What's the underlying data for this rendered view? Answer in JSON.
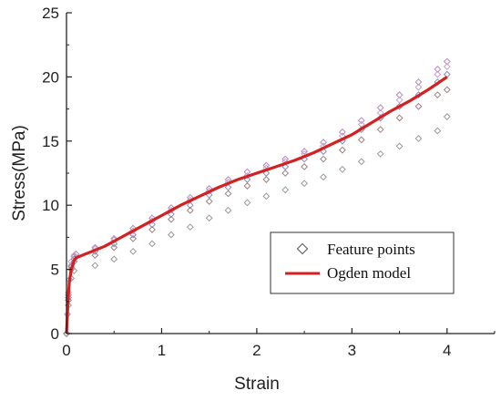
{
  "chart_data": {
    "type": "scatter",
    "xlabel": "Strain",
    "ylabel": "Stress(MPa)",
    "xlim": [
      0,
      4.5
    ],
    "ylim": [
      0,
      25
    ],
    "xticks": [
      "0",
      "1",
      "2",
      "3",
      "4"
    ],
    "yticks": [
      "0",
      "5",
      "10",
      "15",
      "20",
      "25"
    ],
    "grid": false,
    "legend_position": "center-right",
    "series": [
      {
        "name": "Feature points",
        "kind": "scatter",
        "marker": "diamond",
        "sub_series": [
          {
            "color": "#b58ab8",
            "points": [
              [
                0,
                0
              ],
              [
                0.01,
                1.5
              ],
              [
                0.02,
                3.0
              ],
              [
                0.03,
                4.2
              ],
              [
                0.05,
                5.3
              ],
              [
                0.08,
                6.0
              ],
              [
                0.1,
                6.2
              ],
              [
                0.3,
                6.7
              ],
              [
                0.5,
                7.4
              ],
              [
                0.7,
                8.2
              ],
              [
                0.9,
                9.0
              ],
              [
                1.1,
                9.8
              ],
              [
                1.3,
                10.6
              ],
              [
                1.5,
                11.3
              ],
              [
                1.7,
                12.0
              ],
              [
                1.9,
                12.6
              ],
              [
                2.1,
                13.1
              ],
              [
                2.3,
                13.6
              ],
              [
                2.5,
                14.2
              ],
              [
                2.7,
                14.9
              ],
              [
                2.9,
                15.7
              ],
              [
                3.1,
                16.6
              ],
              [
                3.3,
                17.6
              ],
              [
                3.5,
                18.6
              ],
              [
                3.7,
                19.6
              ],
              [
                3.9,
                20.6
              ],
              [
                4.0,
                21.2
              ]
            ]
          },
          {
            "color": "#c9a0c9",
            "points": [
              [
                0,
                0
              ],
              [
                0.02,
                3.2
              ],
              [
                0.05,
                5.6
              ],
              [
                0.08,
                6.1
              ],
              [
                0.3,
                6.6
              ],
              [
                0.5,
                7.3
              ],
              [
                0.7,
                8.0
              ],
              [
                0.9,
                8.8
              ],
              [
                1.1,
                9.6
              ],
              [
                1.3,
                10.4
              ],
              [
                1.5,
                11.1
              ],
              [
                1.7,
                11.8
              ],
              [
                1.9,
                12.3
              ],
              [
                2.1,
                12.9
              ],
              [
                2.3,
                13.4
              ],
              [
                2.5,
                14.0
              ],
              [
                2.7,
                14.6
              ],
              [
                2.9,
                15.4
              ],
              [
                3.1,
                16.3
              ],
              [
                3.3,
                17.2
              ],
              [
                3.5,
                18.2
              ],
              [
                3.7,
                19.2
              ],
              [
                3.9,
                20.2
              ],
              [
                4.0,
                20.8
              ]
            ]
          },
          {
            "color": "#8c8cc0",
            "points": [
              [
                0,
                0
              ],
              [
                0.02,
                2.8
              ],
              [
                0.05,
                5.2
              ],
              [
                0.08,
                5.8
              ],
              [
                0.3,
                6.4
              ],
              [
                0.5,
                7.0
              ],
              [
                0.7,
                7.7
              ],
              [
                0.9,
                8.5
              ],
              [
                1.1,
                9.3
              ],
              [
                1.3,
                10.0
              ],
              [
                1.5,
                10.8
              ],
              [
                1.7,
                11.4
              ],
              [
                1.9,
                12.0
              ],
              [
                2.1,
                12.5
              ],
              [
                2.3,
                13.0
              ],
              [
                2.5,
                13.6
              ],
              [
                2.7,
                14.2
              ],
              [
                2.9,
                15.0
              ],
              [
                3.1,
                15.9
              ],
              [
                3.3,
                16.8
              ],
              [
                3.5,
                17.7
              ],
              [
                3.7,
                18.6
              ],
              [
                3.9,
                19.6
              ],
              [
                4.0,
                20.2
              ]
            ]
          },
          {
            "color": "#a08080",
            "points": [
              [
                0,
                0
              ],
              [
                0.02,
                2.6
              ],
              [
                0.05,
                5.0
              ],
              [
                0.08,
                5.6
              ],
              [
                0.3,
                6.1
              ],
              [
                0.5,
                6.7
              ],
              [
                0.7,
                7.4
              ],
              [
                0.9,
                8.1
              ],
              [
                1.1,
                8.9
              ],
              [
                1.3,
                9.6
              ],
              [
                1.5,
                10.3
              ],
              [
                1.7,
                10.9
              ],
              [
                1.9,
                11.5
              ],
              [
                2.1,
                12.0
              ],
              [
                2.3,
                12.5
              ],
              [
                2.5,
                13.0
              ],
              [
                2.7,
                13.6
              ],
              [
                2.9,
                14.3
              ],
              [
                3.1,
                15.1
              ],
              [
                3.3,
                15.9
              ],
              [
                3.5,
                16.8
              ],
              [
                3.7,
                17.7
              ],
              [
                3.9,
                18.6
              ],
              [
                4.0,
                19.0
              ]
            ]
          },
          {
            "color": "#9a9a9a",
            "points": [
              [
                0,
                0
              ],
              [
                0.02,
                2.2
              ],
              [
                0.05,
                4.3
              ],
              [
                0.08,
                4.9
              ],
              [
                0.3,
                5.3
              ],
              [
                0.5,
                5.8
              ],
              [
                0.7,
                6.4
              ],
              [
                0.9,
                7.0
              ],
              [
                1.1,
                7.7
              ],
              [
                1.3,
                8.3
              ],
              [
                1.5,
                9.0
              ],
              [
                1.7,
                9.6
              ],
              [
                1.9,
                10.2
              ],
              [
                2.1,
                10.7
              ],
              [
                2.3,
                11.2
              ],
              [
                2.5,
                11.7
              ],
              [
                2.7,
                12.2
              ],
              [
                2.9,
                12.8
              ],
              [
                3.1,
                13.4
              ],
              [
                3.3,
                14.0
              ],
              [
                3.5,
                14.6
              ],
              [
                3.7,
                15.2
              ],
              [
                3.9,
                15.8
              ],
              [
                4.0,
                16.9
              ]
            ]
          }
        ]
      },
      {
        "name": "Ogden model",
        "kind": "line",
        "color": "#d42020",
        "points": [
          [
            0,
            0
          ],
          [
            0.01,
            1.5
          ],
          [
            0.02,
            3.0
          ],
          [
            0.03,
            4.0
          ],
          [
            0.05,
            5.0
          ],
          [
            0.08,
            5.7
          ],
          [
            0.1,
            5.9
          ],
          [
            0.2,
            6.2
          ],
          [
            0.4,
            6.8
          ],
          [
            0.6,
            7.6
          ],
          [
            0.8,
            8.4
          ],
          [
            1.0,
            9.2
          ],
          [
            1.2,
            10.0
          ],
          [
            1.4,
            10.7
          ],
          [
            1.6,
            11.4
          ],
          [
            1.8,
            12.0
          ],
          [
            2.0,
            12.5
          ],
          [
            2.2,
            13.0
          ],
          [
            2.4,
            13.5
          ],
          [
            2.6,
            14.1
          ],
          [
            2.8,
            14.8
          ],
          [
            3.0,
            15.5
          ],
          [
            3.2,
            16.4
          ],
          [
            3.4,
            17.3
          ],
          [
            3.6,
            18.1
          ],
          [
            3.8,
            19.0
          ],
          [
            4.0,
            20.0
          ]
        ]
      }
    ]
  }
}
